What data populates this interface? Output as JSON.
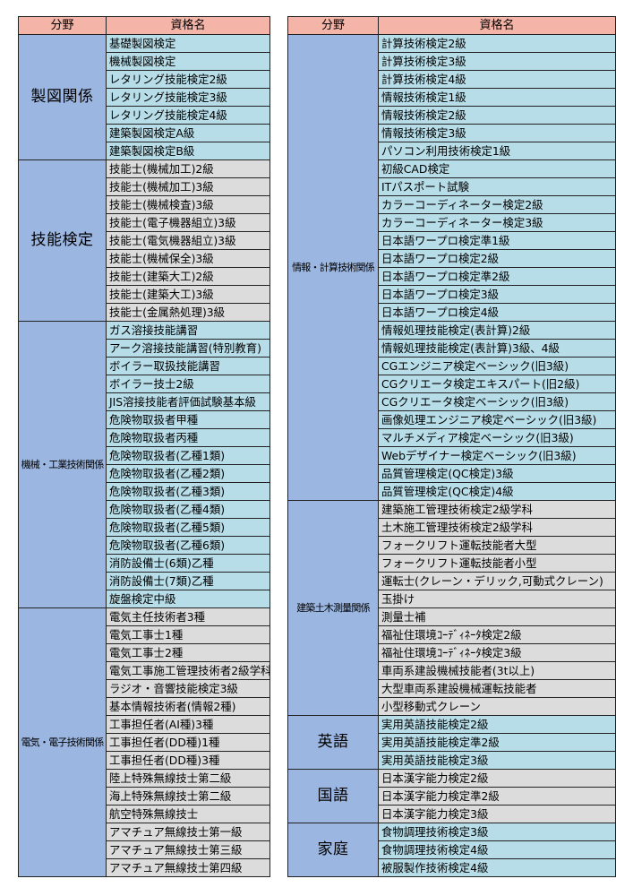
{
  "headers": {
    "field": "分野",
    "name": "資格名"
  },
  "colors": {
    "header": "#f4b5a8",
    "category": "#9bb6e0",
    "cyan": "#b7dde8",
    "gray": "#dcdcdc"
  },
  "left": [
    {
      "field": "製図関係",
      "style": "big",
      "color": "c0",
      "items": [
        "基礎製図検定",
        "機械製図検定",
        "レタリング技能検定2級",
        "レタリング技能検定3級",
        "レタリング技能検定4級",
        "建築製図検定A級",
        "建築製図検定B級"
      ]
    },
    {
      "field": "技能検定",
      "style": "big",
      "color": "c1",
      "items": [
        "技能士(機械加工)2級",
        "技能士(機械加工)3級",
        "技能士(機械検査)3級",
        "技能士(電子機器組立)3級",
        "技能士(電気機器組立)3級",
        "技能士(機械保全)3級",
        "技能士(建築大工)2級",
        "技能士(建築大工)3級",
        "技能士(金属熱処理)3級"
      ]
    },
    {
      "field": "機械・工業技術関係",
      "style": "small",
      "color": "c0",
      "items": [
        "ガス溶接技能講習",
        "アーク溶接技能講習(特別教育)",
        "ボイラー取扱技能講習",
        "ボイラー技士2級",
        "JIS溶接技能者評価試験基本級",
        "危険物取扱者甲種",
        "危険物取扱者丙種",
        "危険物取扱者(乙種1類)",
        "危険物取扱者(乙種2類)",
        "危険物取扱者(乙種3類)",
        "危険物取扱者(乙種4類)",
        "危険物取扱者(乙種5類)",
        "危険物取扱者(乙種6類)",
        "消防設備士(6類)乙種",
        "消防設備士(7類)乙種",
        "旋盤検定中級"
      ]
    },
    {
      "field": "電気・電子技術関係",
      "style": "small",
      "color": "c1",
      "items": [
        "電気主任技術者3種",
        "電気工事士1種",
        "電気工事士2種",
        "電気工事施工管理技術者2級学科",
        "ラジオ・音響技能検定3級",
        "基本情報技術者(情報2種)",
        "工事担任者(AI種)3種",
        "工事担任者(DD種)1種",
        "工事担任者(DD種)3種",
        "陸上特殊無線技士第二級",
        "海上特殊無線技士第二級",
        "航空特殊無線技士",
        "アマチュア無線技士第一級",
        "アマチュア無線技士第三級",
        "アマチュア無線技士第四級"
      ]
    }
  ],
  "right": [
    {
      "field": "情報・計算技術関係",
      "style": "small",
      "color": "c0",
      "items": [
        "計算技術検定2級",
        "計算技術検定3級",
        "計算技術検定4級",
        "情報技術検定1級",
        "情報技術検定2級",
        "情報技術検定3級",
        "パソコン利用技術検定1級",
        "初級CAD検定",
        "ITパスポート試験",
        "カラーコーディネーター検定2級",
        "カラーコーディネーター検定3級",
        "日本語ワープロ検定準1級",
        "日本語ワープロ検定2級",
        "日本語ワープロ検定準2級",
        "日本語ワープロ検定3級",
        "日本語ワープロ検定4級",
        "情報処理技能検定(表計算)2級",
        "情報処理技能検定(表計算)3級、4級",
        "CGエンジニア検定ベーシック(旧3級)",
        "CGクリエータ検定エキスパート(旧2級)",
        "CGクリエータ検定ベーシック(旧3級)",
        "画像処理エンジニア検定ベーシック(旧3級)",
        "マルチメディア検定ベーシック(旧3級)",
        "Webデザイナー検定ベーシック(旧3級)",
        "品質管理検定(QC検定)3級",
        "品質管理検定(QC検定)4級"
      ]
    },
    {
      "field": "建築土木測量関係",
      "style": "small",
      "color": "c1",
      "items": [
        "建築施工管理技術検定2級学科",
        "土木施工管理技術検定2級学科",
        "フォークリフト運転技能者大型",
        "フォークリフト運転技能者小型",
        "運転士(クレーン・デリック,可動式クレーン)",
        "玉掛け",
        "測量士補",
        "福祉住環境ｺｰﾃﾞｨﾈｰﾀ検定2級",
        "福祉住環境ｺｰﾃﾞｨﾈｰﾀ検定3級",
        "車両系建設機械技能者(3t以上)",
        "大型車両系建設機械運転技能者",
        "小型移動式クレーン"
      ]
    },
    {
      "field": "英語",
      "style": "big",
      "color": "c0",
      "items": [
        "実用英語技能検定2級",
        "実用英語技能検定準2級",
        "実用英語技能検定3級"
      ]
    },
    {
      "field": "国語",
      "style": "big",
      "color": "c1",
      "items": [
        "日本漢字能力検定2級",
        "日本漢字能力検定準2級",
        "日本漢字能力検定3級"
      ]
    },
    {
      "field": "家庭",
      "style": "big",
      "color": "c0",
      "items": [
        "食物調理技術検定3級",
        "食物調理技術検定4級",
        "被服製作技術検定4級"
      ]
    }
  ]
}
